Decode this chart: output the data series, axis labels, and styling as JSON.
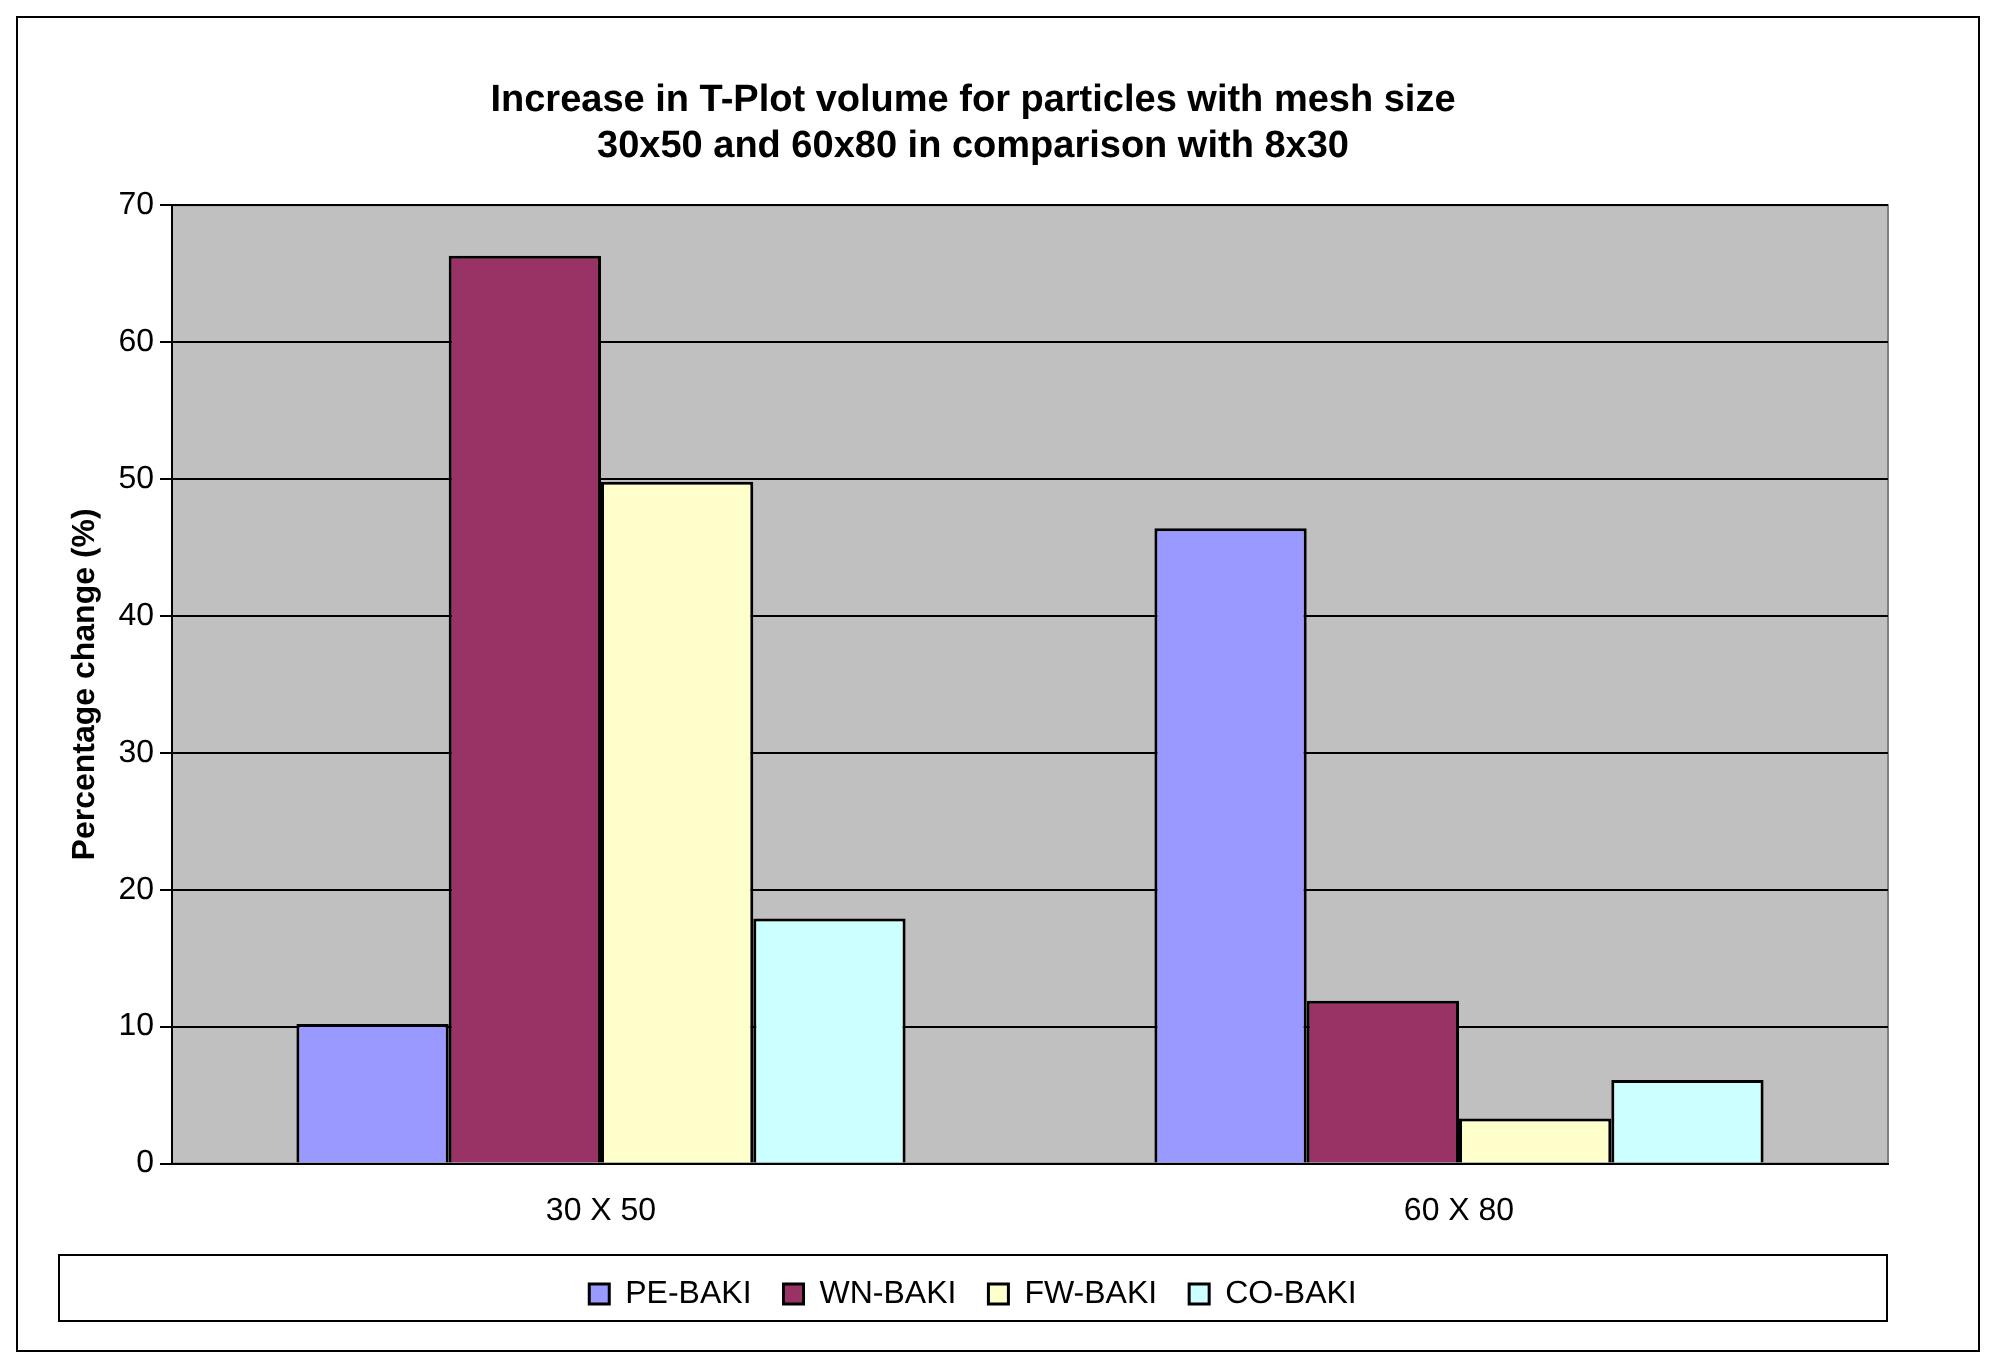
{
  "chart_data": {
    "type": "bar",
    "title": "Increase in T-Plot volume for particles with mesh size\n30x50 and 60x80 in comparison with 8x30",
    "ylabel": "Percentage change (%)",
    "categories": [
      "30 X 50",
      "60 X 80"
    ],
    "series": [
      {
        "name": "PE-BAKI",
        "color": "#9999ff",
        "values": [
          10.2,
          46.4
        ]
      },
      {
        "name": "WN-BAKI",
        "color": "#993366",
        "values": [
          66.3,
          11.9
        ]
      },
      {
        "name": "FW-BAKI",
        "color": "#ffffcc",
        "values": [
          49.8,
          3.3
        ]
      },
      {
        "name": "CO-BAKI",
        "color": "#ccffff",
        "values": [
          17.9,
          6.1
        ]
      }
    ],
    "ylim": [
      0,
      70
    ],
    "yticks": [
      0,
      10,
      20,
      30,
      40,
      50,
      60,
      70
    ],
    "grid": "y",
    "legend": "bottom"
  }
}
